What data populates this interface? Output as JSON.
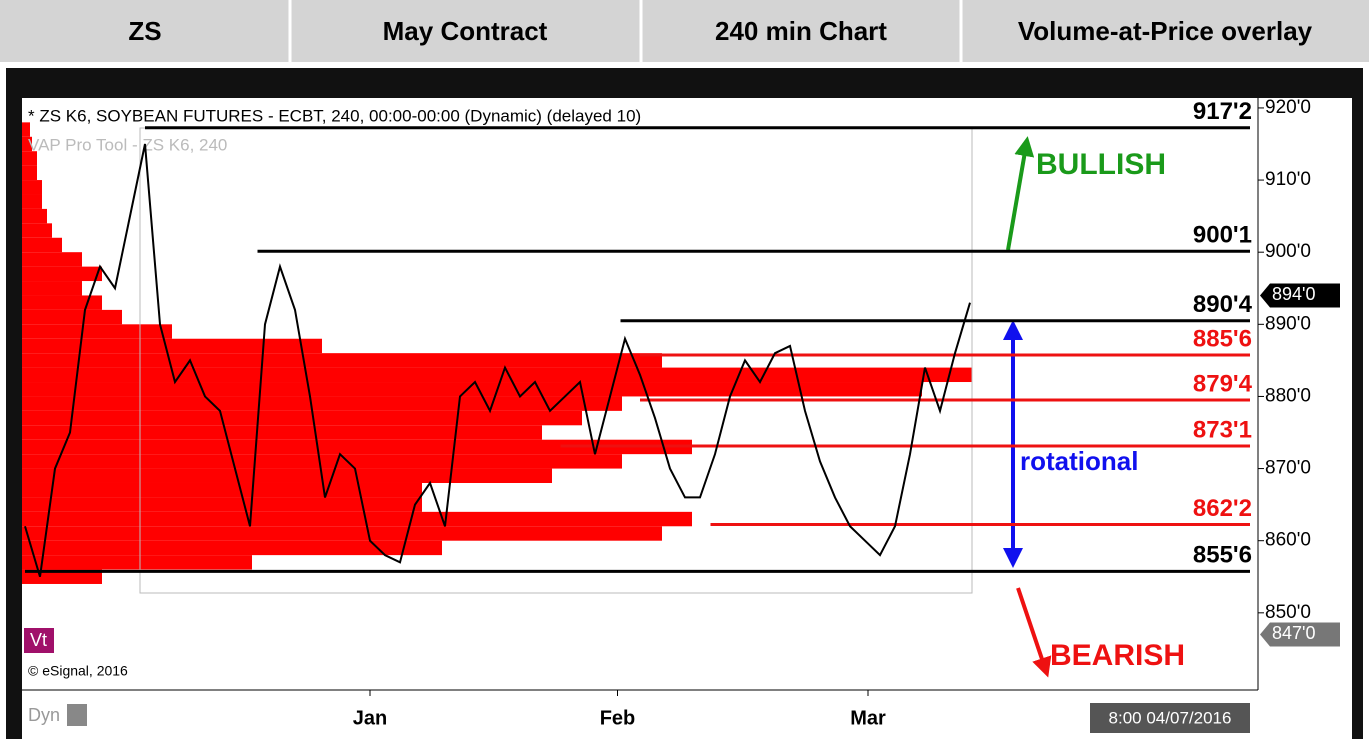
{
  "header": {
    "cells": [
      "ZS",
      "May Contract",
      "240 min Chart",
      "Volume-at-Price overlay"
    ]
  },
  "chart_data": {
    "type": "line",
    "title": "* ZS K6, SOYBEAN FUTURES - ECBT, 240, 00:00-00:00 (Dynamic) (delayed 10)",
    "subtitle": "VAP Pro Tool - ZS K6, 240",
    "x": [
      0,
      1,
      2,
      3,
      4,
      5,
      6,
      7,
      8,
      9,
      10,
      11,
      12,
      13,
      14,
      15,
      16,
      17,
      18,
      19,
      20,
      21,
      22,
      23,
      24,
      25,
      26,
      27,
      28,
      29,
      30,
      31,
      32,
      33,
      34,
      35,
      36,
      37,
      38,
      39,
      40,
      41,
      42,
      43,
      44,
      45,
      46,
      47,
      48,
      49,
      50,
      51,
      52,
      53,
      54,
      55,
      56,
      57,
      58,
      59,
      60,
      61,
      62,
      63
    ],
    "series": [
      {
        "color": "#000000",
        "values": [
          862,
          855,
          870,
          875,
          892,
          898,
          895,
          905,
          915,
          890,
          882,
          885,
          880,
          878,
          870,
          862,
          890,
          898,
          892,
          880,
          866,
          872,
          870,
          860,
          858,
          857,
          865,
          868,
          862,
          880,
          882,
          878,
          884,
          880,
          882,
          878,
          880,
          882,
          872,
          880,
          888,
          883,
          877,
          870,
          866,
          866,
          872,
          880,
          885,
          882,
          886,
          887,
          878,
          871,
          866,
          862,
          860,
          858,
          862,
          872,
          884,
          878,
          886,
          893
        ]
      }
    ],
    "xlim": [
      -0.2,
      82.2
    ],
    "xticks": [
      {
        "value": 23,
        "label": "Jan"
      },
      {
        "value": 39.5,
        "label": "Feb"
      },
      {
        "value": 56.2,
        "label": "Mar"
      }
    ],
    "ylim": [
      839.3,
      921.1
    ],
    "yticks": [
      {
        "value": 920,
        "label": "920'0"
      },
      {
        "value": 910,
        "label": "910'0"
      },
      {
        "value": 900,
        "label": "900'0"
      },
      {
        "value": 890,
        "label": "890'0"
      },
      {
        "value": 880,
        "label": "880'0"
      },
      {
        "value": 870,
        "label": "870'0"
      },
      {
        "value": 860,
        "label": "860'0"
      },
      {
        "value": 850,
        "label": "850'0"
      }
    ],
    "volume_profile": {
      "color": "#ff0000",
      "bins": [
        854,
        856,
        858,
        860,
        862,
        864,
        866,
        868,
        870,
        872,
        874,
        876,
        878,
        880,
        882,
        884,
        886,
        888,
        890,
        892,
        894,
        896,
        898,
        900,
        902,
        904,
        906,
        908,
        910,
        912,
        914,
        916,
        918
      ],
      "values": [
        80,
        230,
        420,
        640,
        670,
        400,
        400,
        530,
        600,
        670,
        520,
        560,
        600,
        900,
        950,
        640,
        300,
        150,
        100,
        80,
        60,
        80,
        60,
        40,
        30,
        25,
        20,
        20,
        15,
        15,
        10,
        8
      ]
    },
    "levels": [
      {
        "value": 917.25,
        "label": "917'2",
        "color": "#000000",
        "from": 8
      },
      {
        "value": 900.125,
        "label": "900'1",
        "color": "#000000",
        "from": 15.5
      },
      {
        "value": 890.5,
        "label": "890'4",
        "color": "#000000",
        "from": 39.7
      },
      {
        "value": 885.75,
        "label": "885'6",
        "color": "#ee1111",
        "from": 41
      },
      {
        "value": 879.5,
        "label": "879'4",
        "color": "#ee1111",
        "from": 41
      },
      {
        "value": 873.125,
        "label": "873'1",
        "color": "#ee1111",
        "from": 35.7
      },
      {
        "value": 862.25,
        "label": "862'2",
        "color": "#ee1111",
        "from": 45.7
      },
      {
        "value": 855.75,
        "label": "855'6",
        "color": "#000000",
        "from": 0
      }
    ],
    "last_price": {
      "value": 894,
      "label": "894'0"
    },
    "marker_price": {
      "value": 847,
      "label": "847'0"
    },
    "annotations": [
      "BULLISH",
      "rotational",
      "BEARISH"
    ],
    "study_label": "Vt",
    "copyright": "© eSignal, 2016",
    "mode": "Dyn",
    "timestamp": "8:00 04/07/2016"
  }
}
